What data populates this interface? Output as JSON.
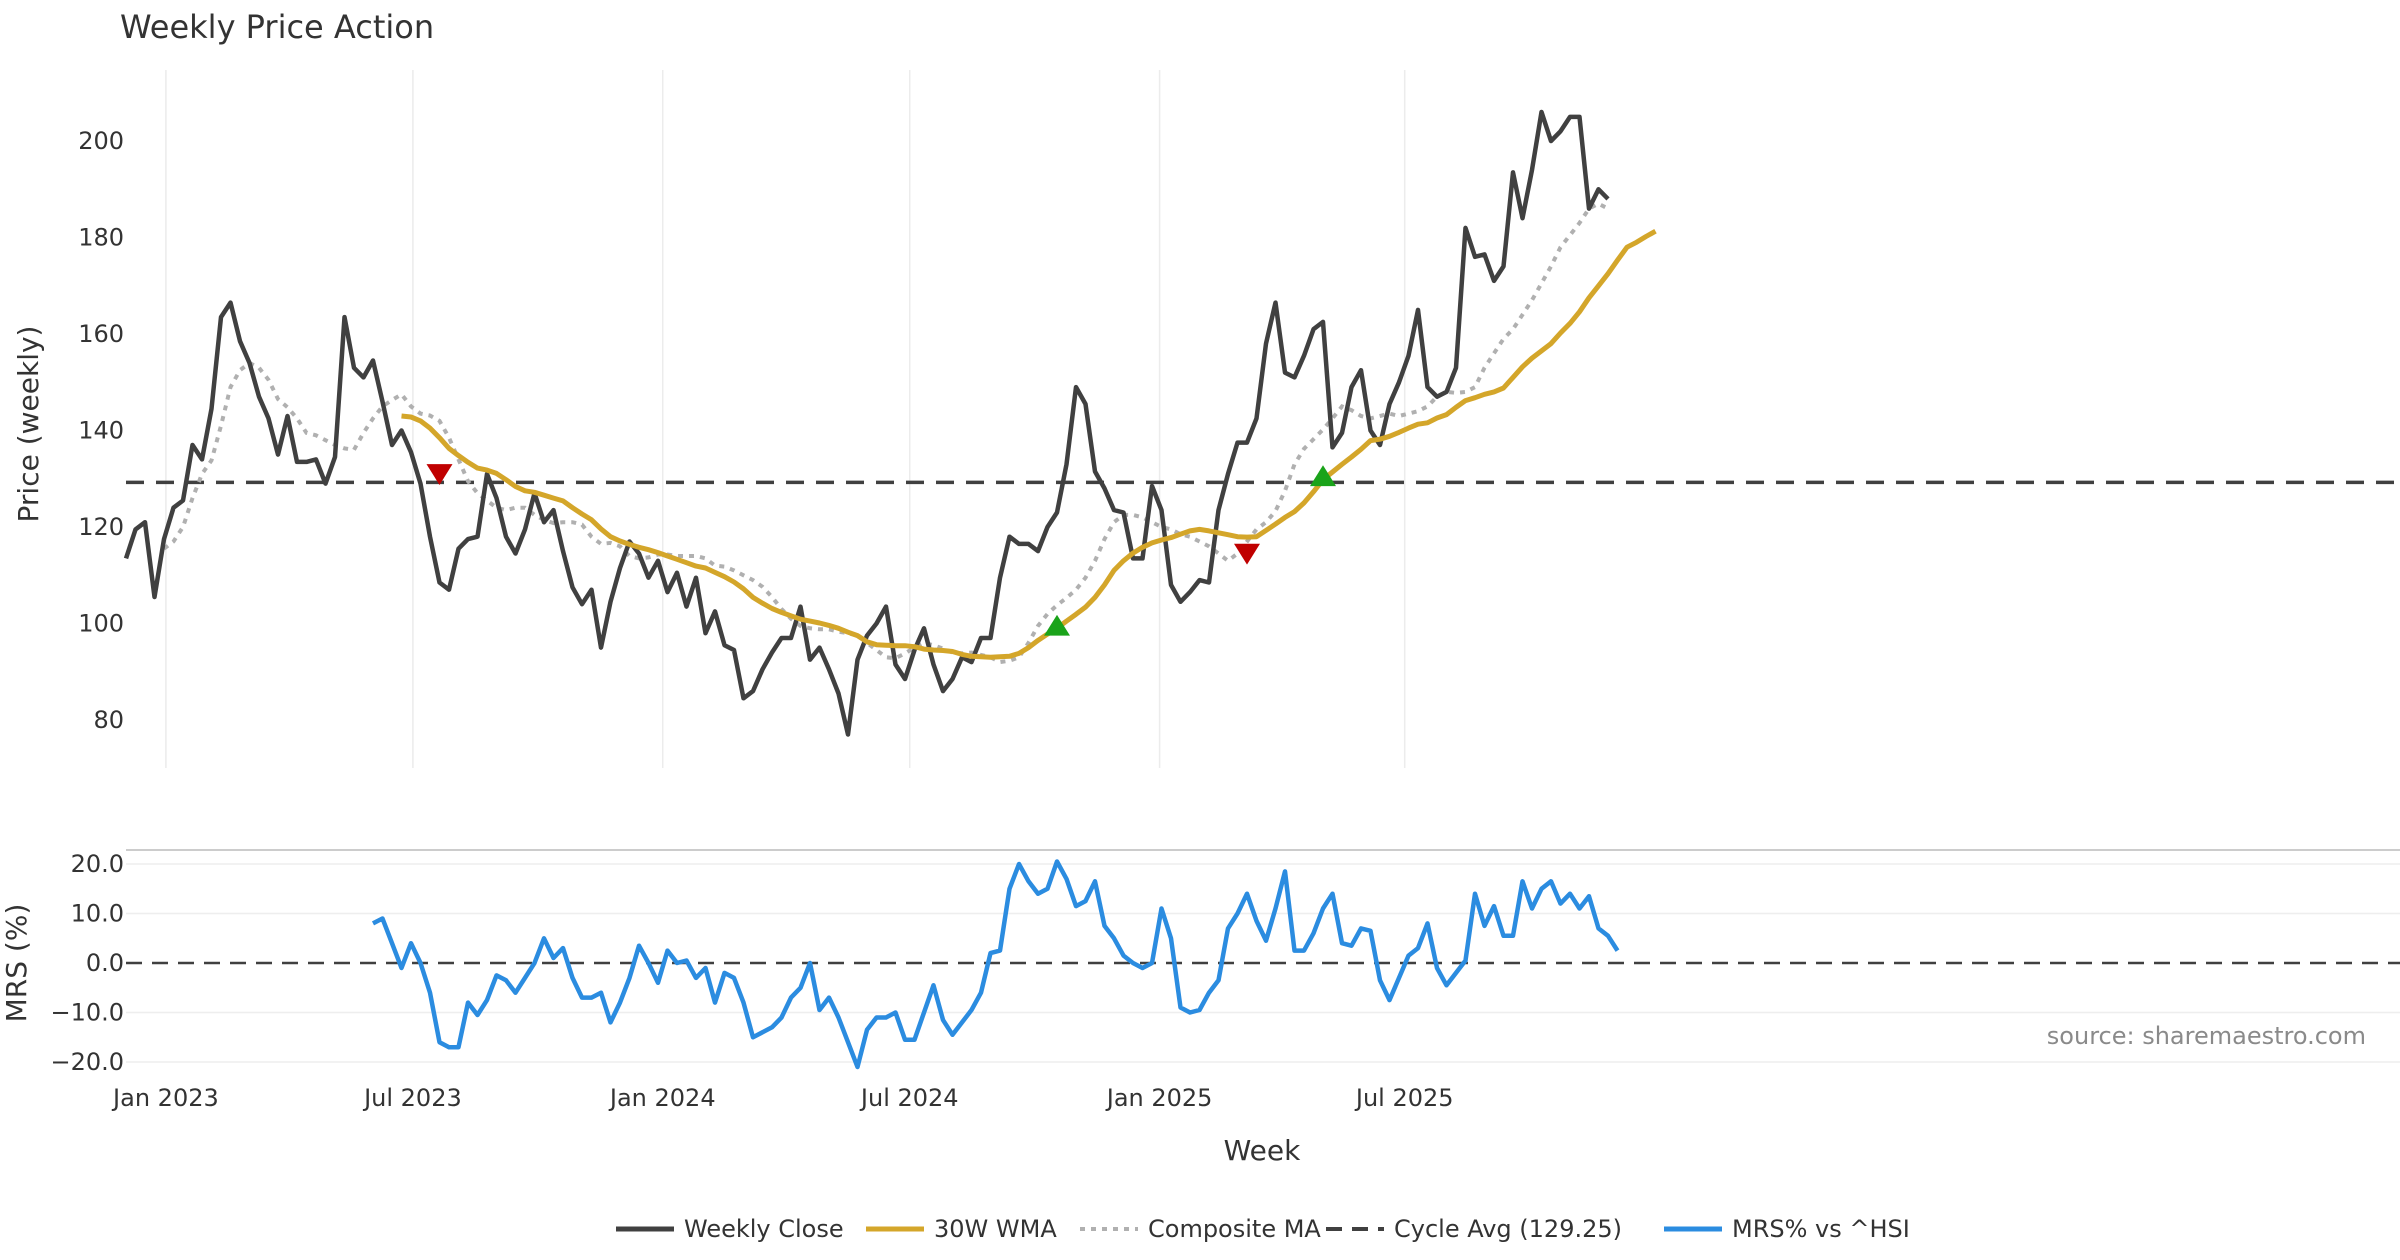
{
  "chart_data": [
    {
      "type": "line",
      "title": "Weekly Price Action",
      "ylabel": "Price (weekly)",
      "ylim": [
        70,
        213
      ],
      "y_ticks": [
        80,
        100,
        120,
        140,
        160,
        180,
        200
      ],
      "x_ticks": [
        "Jan 2023",
        "Jul 2023",
        "Jan 2024",
        "Jul 2024",
        "Jan 2025",
        "Jul 2025"
      ],
      "cycle_avg": 129.25,
      "series": [
        {
          "name": "Weekly Close",
          "color": "#404040",
          "values": [
            113.5,
            119.5,
            121,
            105.5,
            117.5,
            124,
            125.5,
            137,
            134,
            144.5,
            163.5,
            166.5,
            158.5,
            154,
            147,
            142.5,
            135,
            143,
            133.5,
            133.5,
            134,
            129,
            134.5,
            163.5,
            153,
            151,
            154.5,
            146,
            137,
            140,
            135.5,
            129,
            118,
            108.5,
            107,
            115.5,
            117.5,
            118,
            131,
            126,
            118,
            114.5,
            119.5,
            127,
            121,
            123.5,
            115,
            107.5,
            104,
            107,
            95,
            104.5,
            111.5,
            117,
            114.5,
            109.5,
            113,
            106.5,
            110.5,
            103.5,
            109.5,
            98,
            102.5,
            95.5,
            94.5,
            84.5,
            86,
            90.5,
            94,
            97,
            97,
            103.5,
            92.5,
            95,
            90.5,
            85.5,
            77,
            92.5,
            97.5,
            100,
            103.5,
            91.5,
            88.5,
            94.5,
            99,
            91.5,
            86,
            88.5,
            93,
            92,
            97,
            97,
            109.5,
            118,
            116.5,
            116.5,
            115,
            120,
            123,
            133,
            149,
            145.5,
            131.5,
            128,
            123.5,
            123,
            113.5,
            113.5,
            128.5,
            123.5,
            108,
            104.5,
            106.5,
            109,
            108.5,
            123.5,
            131,
            137.5,
            137.5,
            142.5,
            158,
            166.5,
            152,
            151,
            155.5,
            161,
            162.5,
            136.5,
            139.5,
            149,
            152.5,
            140,
            137,
            145.5,
            150,
            155.5,
            165,
            149,
            147,
            148,
            153,
            182,
            176,
            176.5,
            171,
            174,
            193.5,
            184,
            194,
            206,
            200,
            202,
            205,
            205,
            186,
            190,
            188
          ]
        },
        {
          "name": "30W WMA",
          "color": "#d4a62a",
          "start_index": 29,
          "values": [
            143,
            142.8,
            142,
            140.5,
            138.5,
            136.3,
            134.8,
            133.4,
            132.2,
            131.8,
            131.1,
            129.8,
            128.4,
            127.5,
            127.2,
            126.6,
            126,
            125.4,
            124,
            122.7,
            121.5,
            119.6,
            118,
            117.1,
            116.4,
            115.8,
            115.3,
            114.7,
            114,
            113.3,
            112.6,
            111.9,
            111.5,
            110.6,
            109.7,
            108.6,
            107.2,
            105.4,
            104.2,
            103.1,
            102.3,
            101.6,
            100.9,
            100.5,
            100.1,
            99.6,
            99,
            98.2,
            97.5,
            96.2,
            95.6,
            95.5,
            95.4,
            95.4,
            95.2,
            94.7,
            94.5,
            94.4,
            94.2,
            93.6,
            93.2,
            93.1,
            93,
            93.1,
            93.2,
            93.8,
            95,
            96.5,
            97.8,
            99,
            100.5,
            101.9,
            103.4,
            105.4,
            108,
            111,
            113,
            114.6,
            115.8,
            116.7,
            117.3,
            117.8,
            118.5,
            119.2,
            119.5,
            119.2,
            118.8,
            118.4,
            118,
            117.9,
            118,
            119.3,
            120.6,
            122,
            123.2,
            125,
            127.3,
            129.8,
            131.4,
            133,
            134.5,
            136.1,
            137.9,
            138.2,
            138.8,
            139.6,
            140.5,
            141.3,
            141.6,
            142.6,
            143.3,
            144.8,
            146.2,
            146.8,
            147.5,
            148,
            148.8,
            151,
            153.2,
            155,
            156.5,
            158,
            160.2,
            162.2,
            164.6,
            167.5,
            170,
            172.5,
            175.3,
            178,
            179,
            180.2,
            181.3
          ]
        },
        {
          "name": "Composite MA",
          "color": "#b0b0b0",
          "start_index": 4,
          "values": [
            115.5,
            117,
            120,
            126,
            131,
            133.8,
            141,
            149,
            152.5,
            154,
            153,
            150.5,
            146.5,
            144.8,
            142.5,
            139.5,
            139,
            138,
            137,
            136.3,
            136,
            139.5,
            142.5,
            145,
            146.3,
            147.5,
            145,
            143.5,
            143.1,
            142,
            138.5,
            134,
            129.5,
            127,
            125.5,
            124,
            123.5,
            124,
            124,
            122.5,
            121.5,
            120.8,
            121,
            121,
            120.5,
            118,
            116.5,
            116.7,
            116,
            114,
            113.5,
            113.7,
            114.3,
            114.3,
            114,
            114,
            114,
            113.5,
            112,
            111.8,
            111,
            110,
            109,
            107.6,
            105.5,
            103,
            101,
            99.5,
            99,
            98.8,
            98.8,
            98.3,
            98,
            97.5,
            96,
            94.5,
            93,
            92.8,
            93.8,
            95,
            96,
            95.5,
            94.8,
            94,
            93.8,
            94,
            93.5,
            93,
            92,
            92.3,
            93,
            96,
            99.5,
            102,
            103.8,
            105.3,
            107,
            109.5,
            113,
            117.5,
            121,
            122.5,
            122.5,
            122,
            121,
            120,
            119.5,
            118.5,
            118,
            117,
            116,
            114.5,
            113,
            114.5,
            117,
            119.5,
            121,
            123.3,
            127.5,
            133,
            136.2,
            138.2,
            140.2,
            142.5,
            145,
            144.2,
            143,
            142.5,
            143,
            143.5,
            143,
            143.5,
            144,
            145,
            147,
            148,
            147.8,
            148,
            149,
            153,
            156,
            159,
            161,
            164,
            167,
            170.5,
            174,
            178,
            180.5,
            183,
            186,
            187,
            186
          ]
        },
        {
          "name": "Cycle Avg (129.25)",
          "color": "#404040",
          "values": [
            129.25
          ]
        }
      ],
      "markers": [
        {
          "type": "sell",
          "index": 33,
          "value": 131,
          "color": "#c00000"
        },
        {
          "type": "buy",
          "index": 98,
          "value": 99.5,
          "color": "#1aa31a"
        },
        {
          "type": "sell",
          "index": 118,
          "value": 114.5,
          "color": "#c00000"
        },
        {
          "type": "buy",
          "index": 126,
          "value": 130.5,
          "color": "#1aa31a"
        }
      ],
      "source": "source: sharemaestro.com"
    },
    {
      "type": "line",
      "ylabel": "MRS (%)",
      "ylim": [
        -22.5,
        22.5
      ],
      "y_ticks": [
        "20.0",
        "10.0",
        "0.0",
        "-10.0",
        "-20.0"
      ],
      "y_tick_values": [
        20,
        10,
        0,
        -10,
        -20
      ],
      "xlabel": "Week",
      "x_ticks": [
        "Jan 2023",
        "Jul 2023",
        "Jan 2024",
        "Jul 2024",
        "Jan 2025",
        "Jul 2025"
      ],
      "zero_line": 0,
      "series": [
        {
          "name": "MRS% vs ^HSI",
          "color": "#2b8ce0",
          "start_index": 26,
          "values": [
            8,
            9,
            4,
            -1,
            4,
            0,
            -6,
            -16,
            -17,
            -17,
            -8,
            -10.5,
            -7.5,
            -2.5,
            -3.5,
            -6,
            -3,
            0,
            5,
            1,
            3,
            -3,
            -7,
            -7,
            -6,
            -12,
            -8,
            -3,
            3.5,
            0,
            -4,
            2.5,
            0,
            0.5,
            -3,
            -1,
            -8,
            -2,
            -3,
            -8,
            -15,
            -14,
            -13,
            -11,
            -7,
            -5,
            0,
            -9.5,
            -7,
            -11,
            -16,
            -21,
            -13.5,
            -11,
            -11,
            -10,
            -15.5,
            -15.5,
            -10,
            -4.5,
            -11.5,
            -14.5,
            -12,
            -9.5,
            -6,
            2,
            2.5,
            15,
            20,
            16.5,
            14,
            15,
            20.5,
            17,
            11.5,
            12.5,
            16.5,
            7.5,
            5,
            1.5,
            0,
            -1,
            0,
            11,
            5,
            -9,
            -10,
            -9.5,
            -6,
            -3.5,
            7,
            10,
            14,
            8.5,
            4.5,
            11,
            18.5,
            2.5,
            2.5,
            6,
            11,
            14,
            4,
            3.5,
            7,
            6.5,
            -3.5,
            -7.5,
            -3,
            1.5,
            3,
            8,
            -1,
            -4.5,
            -2,
            0.5,
            14,
            7.5,
            11.5,
            5.5,
            5.5,
            16.5,
            11,
            15,
            16.5,
            12,
            14,
            11,
            13.5,
            7,
            5.5,
            2.5
          ]
        }
      ]
    }
  ],
  "legend": [
    {
      "label": "Weekly Close",
      "style": "solid",
      "color": "#404040"
    },
    {
      "label": "30W WMA",
      "style": "solid",
      "color": "#d4a62a"
    },
    {
      "label": "Composite MA",
      "style": "dotted",
      "color": "#b0b0b0"
    },
    {
      "label": "Cycle Avg (129.25)",
      "style": "dashed",
      "color": "#404040"
    },
    {
      "label": "MRS% vs ^HSI",
      "style": "solid",
      "color": "#2b8ce0"
    }
  ]
}
